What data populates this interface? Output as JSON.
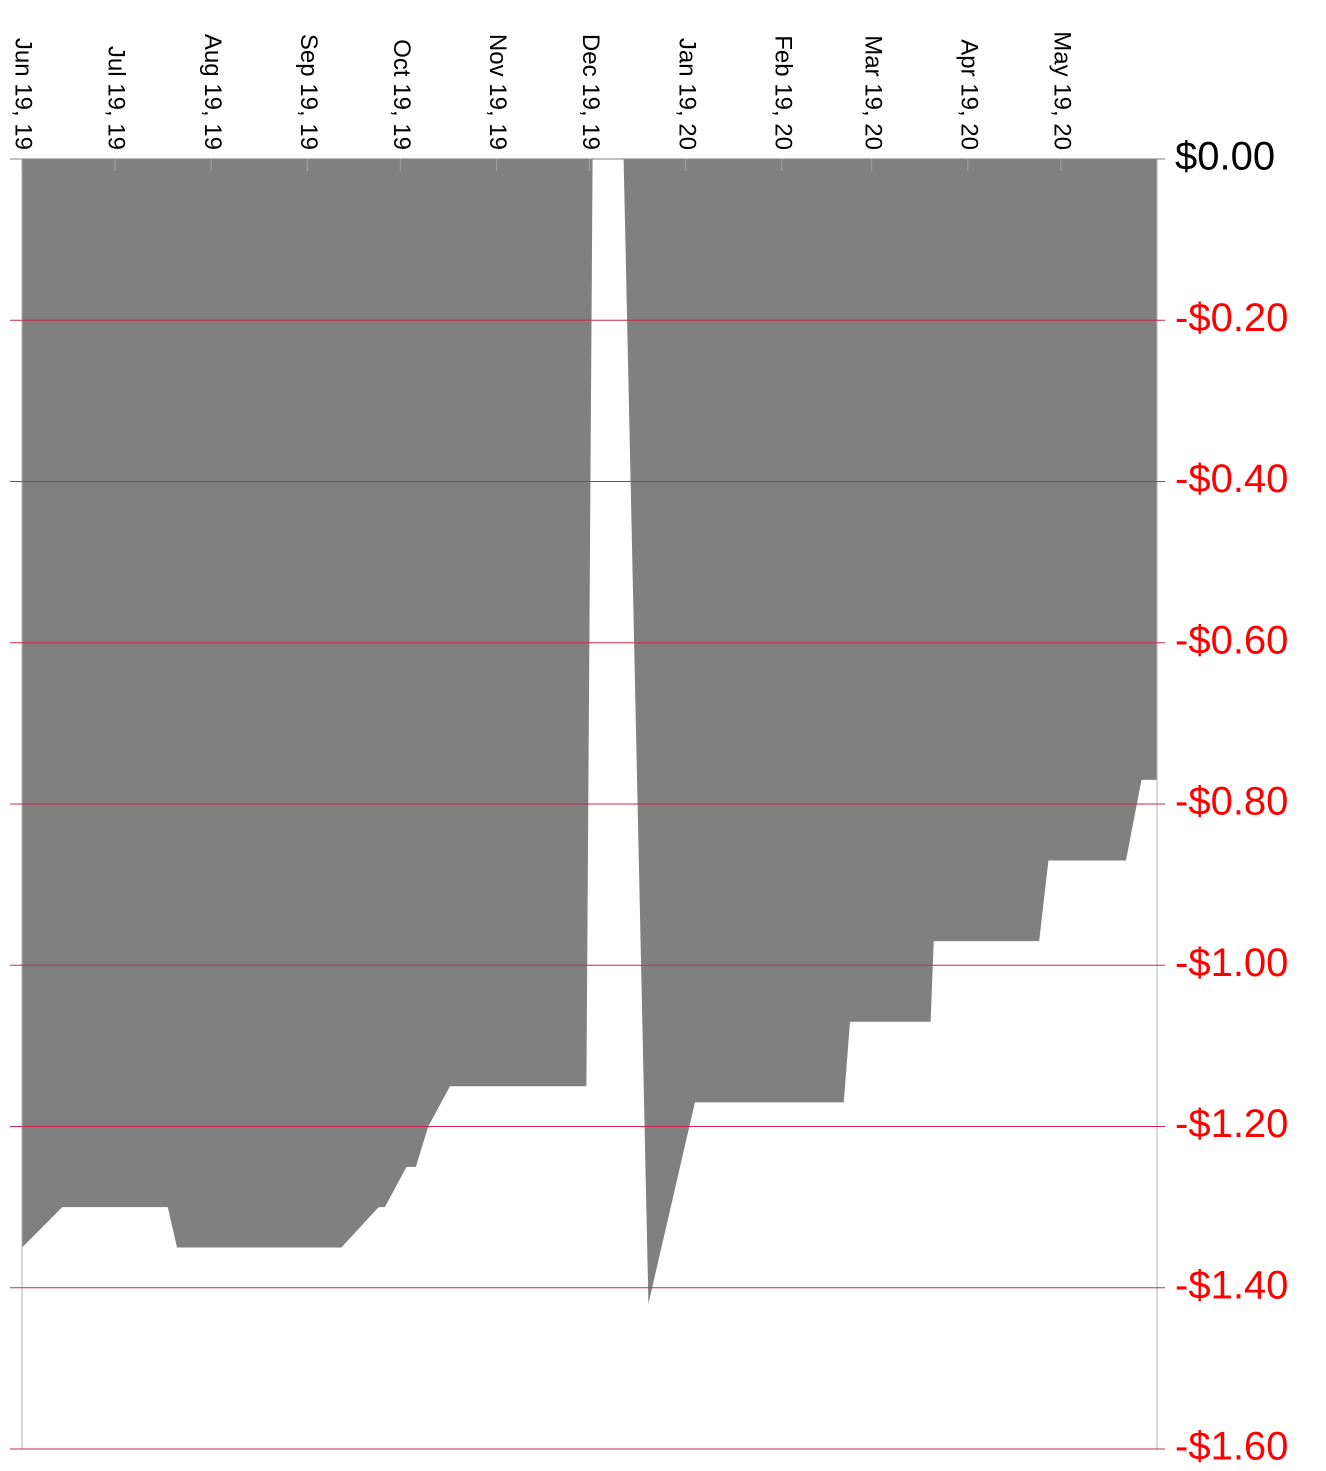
{
  "chart_data": {
    "type": "area",
    "x": [
      "2019-06-19",
      "2019-07-02",
      "2019-08-05",
      "2019-08-08",
      "2019-09-30",
      "2019-10-12",
      "2019-10-14",
      "2019-10-21",
      "2019-10-24",
      "2019-10-28",
      "2019-11-04",
      "2019-12-18",
      "2019-12-20",
      "2019-12-30",
      "2020-01-07",
      "2020-01-22",
      "2020-03-10",
      "2020-03-12",
      "2020-04-07",
      "2020-04-08",
      "2020-05-12",
      "2020-05-15",
      "2020-06-09",
      "2020-06-14",
      "2020-06-19"
    ],
    "values": [
      -1.35,
      -1.3,
      -1.3,
      -1.35,
      -1.35,
      -1.3,
      -1.3,
      -1.25,
      -1.25,
      -1.2,
      -1.15,
      -1.15,
      0,
      0,
      -1.42,
      -1.17,
      -1.17,
      -1.07,
      -1.07,
      -0.97,
      -0.97,
      -0.87,
      -0.87,
      -0.77,
      -0.77
    ],
    "color": "#808080",
    "xlim": [
      "2019-06-19",
      "2020-06-19"
    ],
    "xticks": [
      {
        "value": "2019-06-19",
        "label": "Jun 19, 19"
      },
      {
        "value": "2019-07-19",
        "label": "Jul 19, 19"
      },
      {
        "value": "2019-08-19",
        "label": "Aug 19, 19"
      },
      {
        "value": "2019-09-19",
        "label": "Sep 19, 19"
      },
      {
        "value": "2019-10-19",
        "label": "Oct 19, 19"
      },
      {
        "value": "2019-11-19",
        "label": "Nov 19, 19"
      },
      {
        "value": "2019-12-19",
        "label": "Dec 19, 19"
      },
      {
        "value": "2020-01-19",
        "label": "Jan 19, 20"
      },
      {
        "value": "2020-02-19",
        "label": "Feb 19, 20"
      },
      {
        "value": "2020-03-19",
        "label": "Mar 19, 20"
      },
      {
        "value": "2020-04-19",
        "label": "Apr 19, 20"
      },
      {
        "value": "2020-05-19",
        "label": "May 19, 20"
      }
    ],
    "ylim": [
      -1.6,
      0
    ],
    "yticks": [
      {
        "value": 0,
        "label": "$0.00"
      },
      {
        "value": -0.2,
        "label": "-$0.20"
      },
      {
        "value": -0.4,
        "label": "-$0.40"
      },
      {
        "value": -0.6,
        "label": "-$0.60"
      },
      {
        "value": -0.8,
        "label": "-$0.80"
      },
      {
        "value": -1.0,
        "label": "-$1.00"
      },
      {
        "value": -1.2,
        "label": "-$1.20"
      },
      {
        "value": -1.4,
        "label": "-$1.40"
      },
      {
        "value": -1.6,
        "label": "-$1.60"
      }
    ],
    "grid": true,
    "grid_color": "#c8284b",
    "negative_label_color": "#ff0000",
    "x_axis_position": "top",
    "y_axis_position": "right"
  }
}
